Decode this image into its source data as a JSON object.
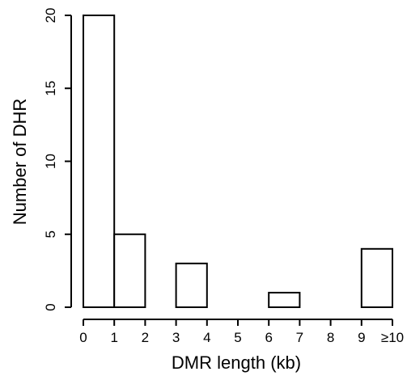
{
  "chart_data": {
    "type": "bar",
    "title": "",
    "xlabel": "DMR length (kb)",
    "ylabel": "Number of DHR",
    "categories": [
      "0-1",
      "1-2",
      "2-3",
      "3-4",
      "4-5",
      "5-6",
      "6-7",
      "7-8",
      "8-9",
      "≥9"
    ],
    "values": [
      20,
      5,
      0,
      3,
      0,
      0,
      1,
      0,
      0,
      4
    ],
    "x_tick_labels": [
      "0",
      "1",
      "2",
      "3",
      "4",
      "5",
      "6",
      "7",
      "8",
      "9",
      "≥10"
    ],
    "y_ticks": [
      0,
      5,
      10,
      15,
      20
    ],
    "ylim": [
      0,
      20
    ],
    "grid": false,
    "legend": "none",
    "bar_fill": "#ffffff",
    "bar_stroke": "#000000"
  }
}
